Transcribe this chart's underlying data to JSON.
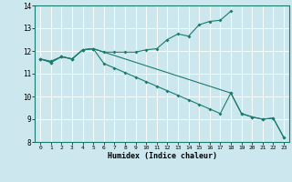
{
  "xlabel": "Humidex (Indice chaleur)",
  "bg_color": "#cce8ee",
  "line_color": "#1a7a6e",
  "grid_color": "#ffffff",
  "xlim": [
    -0.5,
    23.5
  ],
  "ylim": [
    8,
    14
  ],
  "yticks": [
    8,
    9,
    10,
    11,
    12,
    13,
    14
  ],
  "xticks": [
    0,
    1,
    2,
    3,
    4,
    5,
    6,
    7,
    8,
    9,
    10,
    11,
    12,
    13,
    14,
    15,
    16,
    17,
    18,
    19,
    20,
    21,
    22,
    23
  ],
  "line1_x": [
    0,
    1,
    2,
    3,
    4,
    5,
    6,
    7,
    8,
    9,
    10,
    11,
    12,
    13,
    14,
    15,
    16,
    17,
    18
  ],
  "line1_y": [
    11.65,
    11.55,
    11.75,
    11.65,
    12.05,
    12.1,
    11.95,
    11.95,
    11.95,
    11.95,
    12.05,
    12.1,
    12.5,
    12.75,
    12.65,
    13.15,
    13.3,
    13.35,
    13.75
  ],
  "line2_x": [
    0,
    1,
    2,
    3,
    4,
    5,
    6,
    7,
    8,
    9,
    10,
    11,
    12,
    13,
    14,
    15,
    16,
    17,
    18,
    19,
    20,
    21,
    22,
    23
  ],
  "line2_y": [
    11.65,
    11.5,
    11.75,
    11.65,
    12.05,
    12.1,
    11.45,
    11.25,
    11.05,
    10.85,
    10.65,
    10.45,
    10.25,
    10.05,
    9.85,
    9.65,
    9.45,
    9.25,
    10.15,
    9.25,
    9.1,
    9.0,
    9.05,
    8.2
  ],
  "line3_x": [
    0,
    1,
    2,
    3,
    4,
    5,
    18,
    19,
    20,
    21,
    22,
    23
  ],
  "line3_y": [
    11.65,
    11.5,
    11.75,
    11.65,
    12.05,
    12.1,
    10.15,
    9.25,
    9.1,
    9.0,
    9.05,
    8.2
  ]
}
